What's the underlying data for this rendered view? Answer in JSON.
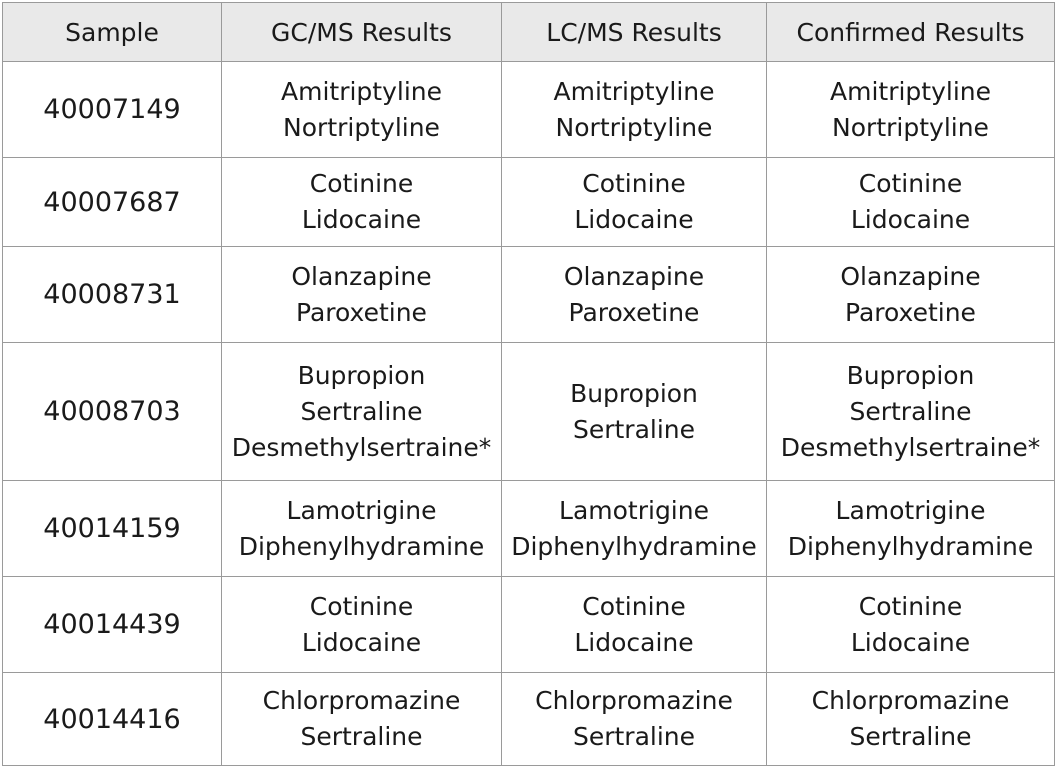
{
  "table": {
    "headers": [
      "Sample",
      "GC/MS Results",
      "LC/MS Results",
      "Confirmed Results"
    ],
    "rows": [
      {
        "sample": "40007149",
        "gcms": [
          "Amitriptyline",
          "Nortriptyline"
        ],
        "lcms": [
          "Amitriptyline",
          "Nortriptyline"
        ],
        "confirmed": [
          "Amitriptyline",
          "Nortriptyline"
        ]
      },
      {
        "sample": "40007687",
        "gcms": [
          "Cotinine",
          "Lidocaine"
        ],
        "lcms": [
          "Cotinine",
          "Lidocaine"
        ],
        "confirmed": [
          "Cotinine",
          "Lidocaine"
        ]
      },
      {
        "sample": "40008731",
        "gcms": [
          "Olanzapine",
          "Paroxetine"
        ],
        "lcms": [
          "Olanzapine",
          "Paroxetine"
        ],
        "confirmed": [
          "Olanzapine",
          "Paroxetine"
        ]
      },
      {
        "sample": "40008703",
        "gcms": [
          "Bupropion",
          "Sertraline",
          "Desmethylsertraine*"
        ],
        "lcms": [
          "Bupropion",
          "Sertraline"
        ],
        "confirmed": [
          "Bupropion",
          "Sertraline",
          "Desmethylsertraine*"
        ]
      },
      {
        "sample": "40014159",
        "gcms": [
          "Lamotrigine",
          "Diphenylhydramine"
        ],
        "lcms": [
          "Lamotrigine",
          "Diphenylhydramine"
        ],
        "confirmed": [
          "Lamotrigine",
          "Diphenylhydramine"
        ]
      },
      {
        "sample": "40014439",
        "gcms": [
          "Cotinine",
          "Lidocaine"
        ],
        "lcms": [
          "Cotinine",
          "Lidocaine"
        ],
        "confirmed": [
          "Cotinine",
          "Lidocaine"
        ]
      },
      {
        "sample": "40014416",
        "gcms": [
          "Chlorpromazine",
          "Sertraline"
        ],
        "lcms": [
          "Chlorpromazine",
          "Sertraline"
        ],
        "confirmed": [
          "Chlorpromazine",
          "Sertraline"
        ]
      }
    ]
  }
}
